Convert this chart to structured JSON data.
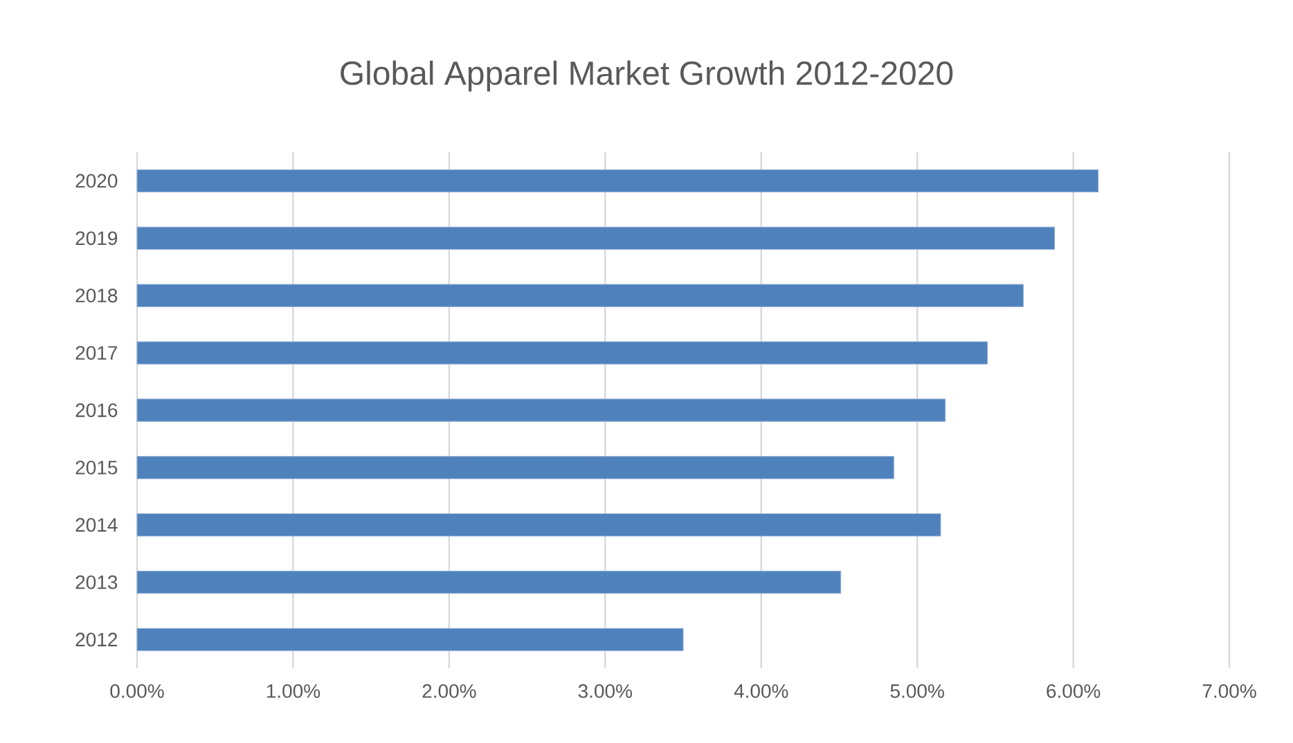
{
  "chart_data": {
    "type": "bar",
    "orientation": "horizontal",
    "title": "Global Apparel Market Growth 2012-2020",
    "categories": [
      "2020",
      "2019",
      "2018",
      "2017",
      "2016",
      "2015",
      "2014",
      "2013",
      "2012"
    ],
    "values": [
      6.16,
      5.88,
      5.68,
      5.45,
      5.18,
      4.85,
      5.15,
      4.51,
      3.5
    ],
    "color": "#4f81bd",
    "xlim": [
      0,
      7
    ],
    "xticks": [
      {
        "value": 0,
        "label": "0.00%"
      },
      {
        "value": 1,
        "label": "1.00%"
      },
      {
        "value": 2,
        "label": "2.00%"
      },
      {
        "value": 3,
        "label": "3.00%"
      },
      {
        "value": 4,
        "label": "4.00%"
      },
      {
        "value": 5,
        "label": "5.00%"
      },
      {
        "value": 6,
        "label": "6.00%"
      },
      {
        "value": 7,
        "label": "7.00%"
      }
    ],
    "grid": "x"
  }
}
